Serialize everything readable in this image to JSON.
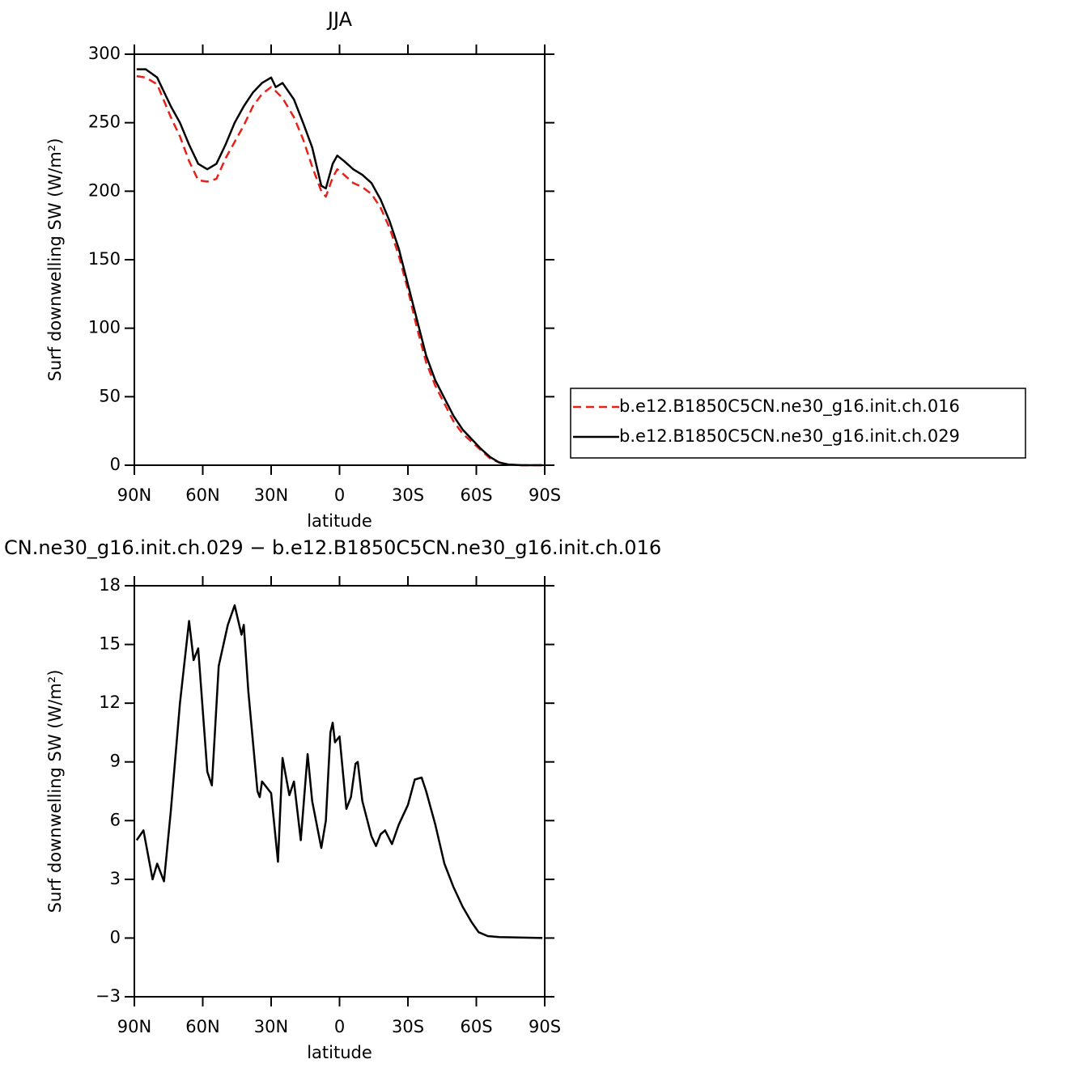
{
  "chart_data": [
    {
      "type": "line",
      "title": "JJA",
      "x_label": "latitude",
      "y_label": "Surf downwelling SW (W/m²)",
      "xlim": [
        90,
        -90
      ],
      "xticks": [
        {
          "value": 90,
          "label": "90N"
        },
        {
          "value": 60,
          "label": "60N"
        },
        {
          "value": 30,
          "label": "30N"
        },
        0,
        {
          "value": -30,
          "label": "30S"
        },
        {
          "value": -60,
          "label": "60S"
        },
        {
          "value": -90,
          "label": "90S"
        }
      ],
      "ylim": [
        0,
        300
      ],
      "yticks": [
        0,
        50,
        100,
        150,
        200,
        250,
        300
      ],
      "legend": "right",
      "x": [
        89,
        85,
        80,
        74,
        70,
        66,
        62,
        58,
        54,
        50,
        46,
        42,
        38,
        34,
        30,
        28,
        25,
        20,
        16,
        12,
        8,
        6,
        3,
        1,
        -2,
        -6,
        -10,
        -14,
        -18,
        -22,
        -26,
        -30,
        -34,
        -38,
        -42,
        -46,
        -50,
        -54,
        -58,
        -62,
        -66,
        -70,
        -74,
        -80,
        -89
      ],
      "series": [
        {
          "name": "b.e12.B1850C5CN.ne30_g16.init.ch.016",
          "color": "#e8201a",
          "line_style": "dashed",
          "values": [
            284,
            283,
            278,
            254,
            240,
            222,
            208,
            207,
            209,
            224,
            236,
            248,
            262,
            271,
            276,
            273,
            268,
            254,
            238,
            218,
            200,
            196,
            210,
            216,
            212,
            206,
            203,
            198,
            188,
            173,
            153,
            128,
            100,
            75,
            58,
            45,
            32,
            23,
            17,
            11,
            5,
            2,
            0.3,
            0,
            0
          ]
        },
        {
          "name": "b.e12.B1850C5CN.ne30_g16.init.ch.029",
          "color": "#000000",
          "line_style": "solid",
          "values": [
            289,
            289,
            283,
            262,
            250,
            234,
            220,
            216,
            220,
            234,
            250,
            262,
            272,
            279,
            283,
            276,
            279,
            267,
            250,
            232,
            204,
            202,
            220,
            226,
            222,
            216,
            212,
            206,
            194,
            178,
            158,
            132,
            106,
            80,
            62,
            49,
            36,
            26,
            19,
            12,
            6,
            2,
            0.5,
            0,
            0
          ]
        }
      ]
    },
    {
      "type": "line",
      "title": "CN.ne30_g16.init.ch.029 − b.e12.B1850C5CN.ne30_g16.init.ch.016",
      "x_label": "latitude",
      "y_label": "Surf downwelling SW (W/m²)",
      "xlim": [
        90,
        -90
      ],
      "xticks": [
        {
          "value": 90,
          "label": "90N"
        },
        {
          "value": 60,
          "label": "60N"
        },
        {
          "value": 30,
          "label": "30N"
        },
        0,
        {
          "value": -30,
          "label": "30S"
        },
        {
          "value": -60,
          "label": "60S"
        },
        {
          "value": -90,
          "label": "90S"
        }
      ],
      "ylim": [
        -3,
        18
      ],
      "yticks": [
        {
          "value": -3,
          "label": "−3"
        },
        0,
        3,
        6,
        9,
        12,
        15,
        18
      ],
      "x": [
        89,
        86,
        82,
        80,
        77,
        74,
        70,
        66,
        64,
        62,
        58,
        56,
        53,
        49,
        46,
        43,
        42,
        40,
        36,
        35,
        34,
        30,
        27,
        25,
        22,
        20,
        17,
        14,
        12,
        8,
        6,
        4,
        3,
        2,
        0,
        -3,
        -5,
        -7,
        -8,
        -10,
        -14,
        -16,
        -18,
        -20,
        -23,
        -26,
        -30,
        -33,
        -36,
        -38,
        -42,
        -46,
        -50,
        -54,
        -58,
        -61,
        -65,
        -70,
        -89
      ],
      "series": [
        {
          "color": "#000000",
          "line_style": "solid",
          "values": [
            5,
            5.5,
            3,
            3.8,
            2.9,
            6.5,
            12,
            16.2,
            14.2,
            14.8,
            8.5,
            7.8,
            13.9,
            16,
            17,
            15.5,
            16,
            12.6,
            7.5,
            7.2,
            8,
            7.4,
            3.9,
            9.2,
            7.3,
            8,
            5,
            9.4,
            7,
            4.6,
            6,
            10.5,
            11,
            10,
            10.3,
            6.6,
            7.2,
            8.9,
            9,
            7,
            5.2,
            4.7,
            5.3,
            5.5,
            4.8,
            5.8,
            6.8,
            8.1,
            8.2,
            7.5,
            5.8,
            3.8,
            2.6,
            1.6,
            0.8,
            0.3,
            0.1,
            0.05,
            0
          ]
        }
      ]
    }
  ]
}
